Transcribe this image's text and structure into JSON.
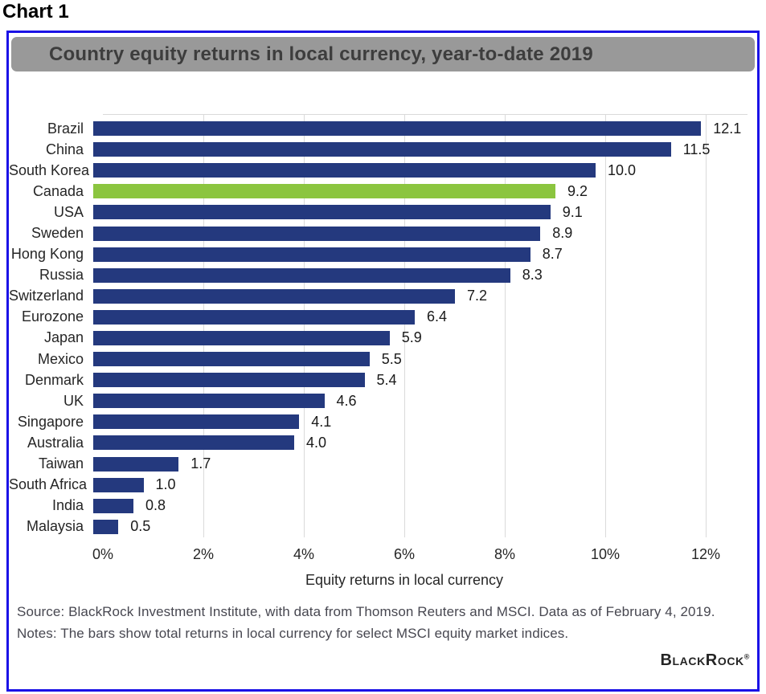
{
  "page": {
    "heading": "Chart 1"
  },
  "chart": {
    "title": "Country equity returns in local currency, year-to-date 2019",
    "xlabel": "Equity returns in local currency",
    "source": "Source: BlackRock Investment Institute, with data from Thomson Reuters and MSCI. Data as of February 4, 2019.",
    "notes": "Notes: The bars show total returns in local currency for select MSCI equity market indices.",
    "logo_text": "BlackRock",
    "logo_mark": "®",
    "colors": {
      "bar": "#24397e",
      "highlight_bar": "#8bc53f",
      "frame_border": "#1b12e6",
      "titlebar_bg": "#999999",
      "titlebar_text": "#3d3d3d",
      "grid": "#dadada",
      "text": "#262626"
    }
  },
  "chart_data": {
    "type": "bar",
    "orientation": "horizontal",
    "title": "Country equity returns in local currency, year-to-date 2019",
    "xlabel": "Equity returns in local currency",
    "ylabel": "",
    "categories": [
      "Brazil",
      "China",
      "South Korea",
      "Canada",
      "USA",
      "Sweden",
      "Hong Kong",
      "Russia",
      "Switzerland",
      "Eurozone",
      "Japan",
      "Mexico",
      "Denmark",
      "UK",
      "Singapore",
      "Australia",
      "Taiwan",
      "South Africa",
      "India",
      "Malaysia"
    ],
    "values": [
      12.1,
      11.5,
      10.0,
      9.2,
      9.1,
      8.9,
      8.7,
      8.3,
      7.2,
      6.4,
      5.9,
      5.5,
      5.4,
      4.6,
      4.1,
      4.0,
      1.7,
      1.0,
      0.8,
      0.5
    ],
    "value_labels": [
      "12.1",
      "11.5",
      "10.0",
      "9.2",
      "9.1",
      "8.9",
      "8.7",
      "8.3",
      "7.2",
      "6.4",
      "5.9",
      "5.5",
      "5.4",
      "4.6",
      "4.1",
      "4.0",
      "1.7",
      "1.0",
      "0.8",
      "0.5"
    ],
    "highlight_category": "Canada",
    "xlim": [
      0,
      12
    ],
    "x_tick_labels": [
      "0%",
      "2%",
      "4%",
      "6%",
      "8%",
      "10%",
      "12%"
    ],
    "x_tick_values": [
      0,
      2,
      4,
      6,
      8,
      10,
      12
    ],
    "grid_values": [
      2,
      4,
      6,
      8,
      10,
      12
    ],
    "grid": "vertical-light",
    "legend": "none",
    "data_labels": "end-of-bar"
  }
}
